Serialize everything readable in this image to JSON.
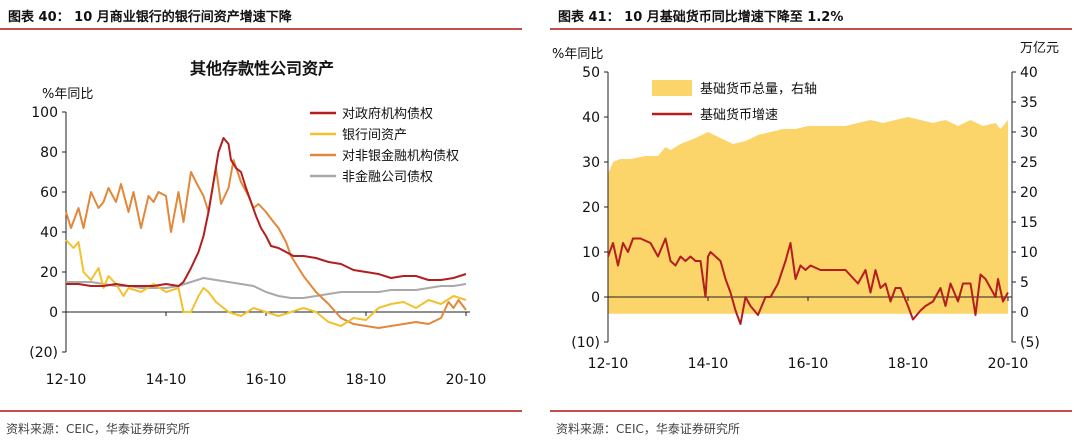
{
  "left": {
    "figure_title": "图表 40：   10 月商业银行的银行间资产增速下降",
    "source": "资料来源：CEIC，华泰证券研究所",
    "chart_data": {
      "type": "line",
      "title": "其他存款性公司资产",
      "ylabel": "%年同比",
      "ylim": [
        -20,
        100
      ],
      "yticks": [
        "(20)",
        "0",
        "20",
        "40",
        "60",
        "80",
        "100"
      ],
      "yticks_values": [
        -20,
        0,
        20,
        40,
        60,
        80,
        100
      ],
      "xlim": [
        2012.75,
        2020.83
      ],
      "xticks": [
        "12-10",
        "14-10",
        "16-10",
        "18-10",
        "20-10"
      ],
      "xticks_values": [
        2012.75,
        2014.75,
        2016.75,
        2018.75,
        2020.75
      ],
      "legend_position": "top-right",
      "series": [
        {
          "name": "对政府机构债权",
          "color": "#b41e1e",
          "x": [
            2012.75,
            2013.0,
            2013.25,
            2013.5,
            2013.75,
            2014.0,
            2014.25,
            2014.5,
            2014.75,
            2015.0,
            2015.1,
            2015.25,
            2015.4,
            2015.5,
            2015.6,
            2015.7,
            2015.8,
            2015.9,
            2016.0,
            2016.05,
            2016.15,
            2016.25,
            2016.35,
            2016.45,
            2016.55,
            2016.65,
            2016.75,
            2016.85,
            2017.0,
            2017.15,
            2017.3,
            2017.5,
            2017.75,
            2018.0,
            2018.25,
            2018.5,
            2018.75,
            2019.0,
            2019.25,
            2019.5,
            2019.75,
            2020.0,
            2020.25,
            2020.5,
            2020.75
          ],
          "y": [
            14,
            14,
            13,
            13,
            14,
            13,
            13,
            13,
            14,
            13,
            15,
            22,
            30,
            38,
            50,
            65,
            80,
            87,
            84,
            76,
            72,
            70,
            62,
            55,
            48,
            42,
            38,
            33,
            32,
            30,
            28,
            28,
            27,
            25,
            24,
            21,
            20,
            19,
            17,
            18,
            18,
            16,
            16,
            17,
            19
          ]
        },
        {
          "name": "银行间资产",
          "color": "#f2c12e",
          "x": [
            2012.75,
            2012.9,
            2013.0,
            2013.1,
            2013.25,
            2013.4,
            2013.5,
            2013.6,
            2013.75,
            2013.9,
            2014.0,
            2014.25,
            2014.5,
            2014.75,
            2015.0,
            2015.1,
            2015.25,
            2015.4,
            2015.5,
            2015.6,
            2015.75,
            2016.0,
            2016.25,
            2016.5,
            2016.75,
            2017.0,
            2017.25,
            2017.5,
            2017.75,
            2018.0,
            2018.25,
            2018.5,
            2018.75,
            2019.0,
            2019.25,
            2019.5,
            2019.75,
            2020.0,
            2020.25,
            2020.5,
            2020.75
          ],
          "y": [
            36,
            32,
            35,
            20,
            16,
            22,
            12,
            18,
            14,
            8,
            12,
            10,
            14,
            10,
            12,
            0,
            0,
            8,
            12,
            10,
            5,
            0,
            -2,
            2,
            0,
            -2,
            0,
            2,
            0,
            -5,
            -7,
            -3,
            -4,
            2,
            4,
            5,
            2,
            6,
            4,
            8,
            6
          ]
        },
        {
          "name": "对非银金融机构债权",
          "color": "#e2883a",
          "x": [
            2012.75,
            2012.85,
            2013.0,
            2013.1,
            2013.25,
            2013.4,
            2013.5,
            2013.6,
            2013.75,
            2013.85,
            2014.0,
            2014.1,
            2014.25,
            2014.4,
            2014.5,
            2014.6,
            2014.75,
            2014.85,
            2015.0,
            2015.1,
            2015.25,
            2015.35,
            2015.5,
            2015.6,
            2015.75,
            2015.85,
            2016.0,
            2016.1,
            2016.25,
            2016.4,
            2016.5,
            2016.6,
            2016.75,
            2016.9,
            2017.0,
            2017.15,
            2017.25,
            2017.4,
            2017.5,
            2017.75,
            2018.0,
            2018.25,
            2018.5,
            2018.75,
            2019.0,
            2019.25,
            2019.5,
            2019.75,
            2020.0,
            2020.25,
            2020.4,
            2020.5,
            2020.6,
            2020.75
          ],
          "y": [
            50,
            42,
            52,
            42,
            60,
            52,
            55,
            62,
            55,
            64,
            50,
            60,
            42,
            58,
            55,
            60,
            58,
            40,
            60,
            45,
            70,
            65,
            58,
            50,
            72,
            54,
            62,
            76,
            65,
            58,
            52,
            54,
            50,
            45,
            42,
            35,
            28,
            22,
            18,
            10,
            4,
            -3,
            -6,
            -7,
            -8,
            -7,
            -6,
            -5,
            -6,
            -3,
            5,
            2,
            6,
            1
          ]
        },
        {
          "name": "非金融公司债权",
          "color": "#a9a9a9",
          "x": [
            2012.75,
            2013.0,
            2013.25,
            2013.5,
            2013.75,
            2014.0,
            2014.25,
            2014.5,
            2014.75,
            2015.0,
            2015.25,
            2015.5,
            2015.75,
            2016.0,
            2016.25,
            2016.5,
            2016.75,
            2017.0,
            2017.25,
            2017.5,
            2017.75,
            2018.0,
            2018.25,
            2018.5,
            2018.75,
            2019.0,
            2019.25,
            2019.5,
            2019.75,
            2020.0,
            2020.25,
            2020.5,
            2020.75
          ],
          "y": [
            15,
            15,
            15,
            14,
            13,
            13,
            12,
            12,
            12,
            13,
            15,
            17,
            16,
            15,
            14,
            13,
            10,
            8,
            7,
            7,
            8,
            9,
            10,
            10,
            10,
            10,
            11,
            11,
            11,
            12,
            13,
            13,
            14
          ]
        }
      ]
    }
  },
  "right": {
    "figure_title": "图表 41：   10 月基础货币同比增速下降至 1.2%",
    "source": "资料来源：CEIC，华泰证券研究所",
    "chart_data": {
      "type": "area",
      "ylabel_left": "%年同比",
      "ylabel_right": "万亿元",
      "ylim_left": [
        -10,
        50
      ],
      "yticks_left": [
        "(10)",
        "0",
        "10",
        "20",
        "30",
        "40",
        "50"
      ],
      "yticks_left_values": [
        -10,
        0,
        10,
        20,
        30,
        40,
        50
      ],
      "ylim_right": [
        -5,
        40
      ],
      "yticks_right": [
        "(5)",
        "0",
        "5",
        "10",
        "15",
        "20",
        "25",
        "30",
        "35",
        "40"
      ],
      "yticks_right_values": [
        -5,
        0,
        5,
        10,
        15,
        20,
        25,
        30,
        35,
        40
      ],
      "xlim": [
        2012.75,
        2020.83
      ],
      "xticks": [
        "12-10",
        "14-10",
        "16-10",
        "18-10",
        "20-10"
      ],
      "xticks_values": [
        2012.75,
        2014.75,
        2016.75,
        2018.75,
        2020.75
      ],
      "legend_position": "top-left",
      "series": [
        {
          "name": "基础货币总量，右轴",
          "color": "#fbd46a",
          "axis": "right",
          "kind": "area",
          "x": [
            2012.75,
            2012.85,
            2013.0,
            2013.2,
            2013.5,
            2013.75,
            2013.9,
            2014.0,
            2014.2,
            2014.5,
            2014.75,
            2015.0,
            2015.25,
            2015.5,
            2015.75,
            2016.0,
            2016.25,
            2016.5,
            2016.75,
            2017.0,
            2017.25,
            2017.5,
            2017.75,
            2018.0,
            2018.25,
            2018.5,
            2018.75,
            2019.0,
            2019.25,
            2019.5,
            2019.75,
            2020.0,
            2020.25,
            2020.5,
            2020.6,
            2020.75
          ],
          "y": [
            23,
            25,
            25.5,
            25.5,
            26,
            26,
            27.5,
            27,
            28,
            29,
            30,
            29,
            28,
            28.5,
            29.5,
            30,
            30.5,
            30.5,
            31,
            31,
            31,
            31,
            31.5,
            32,
            31.5,
            32,
            32.5,
            32,
            31.5,
            32,
            31,
            32,
            31,
            31.5,
            30.5,
            32
          ]
        },
        {
          "name": "基础货币增速",
          "color": "#b41e1e",
          "axis": "left",
          "kind": "line",
          "x": [
            2012.75,
            2012.85,
            2012.95,
            2013.05,
            2013.15,
            2013.25,
            2013.4,
            2013.6,
            2013.75,
            2013.9,
            2014.0,
            2014.1,
            2014.2,
            2014.3,
            2014.4,
            2014.5,
            2014.6,
            2014.7,
            2014.75,
            2014.8,
            2015.0,
            2015.1,
            2015.2,
            2015.3,
            2015.4,
            2015.5,
            2015.6,
            2015.75,
            2015.9,
            2016.0,
            2016.15,
            2016.3,
            2016.4,
            2016.5,
            2016.6,
            2016.7,
            2016.8,
            2017.0,
            2017.25,
            2017.5,
            2017.75,
            2017.9,
            2018.0,
            2018.1,
            2018.2,
            2018.3,
            2018.4,
            2018.5,
            2018.6,
            2018.75,
            2018.85,
            2019.0,
            2019.1,
            2019.25,
            2019.4,
            2019.5,
            2019.6,
            2019.75,
            2019.85,
            2020.0,
            2020.1,
            2020.2,
            2020.3,
            2020.4,
            2020.5,
            2020.55,
            2020.65,
            2020.75
          ],
          "y": [
            9,
            12,
            7,
            12,
            10,
            13,
            13,
            12,
            9,
            13,
            8,
            7,
            9,
            8,
            9,
            8,
            8,
            0,
            9,
            10,
            8,
            4,
            1,
            -3,
            -6,
            0,
            -2,
            -4,
            0,
            0,
            3,
            8,
            12,
            4,
            7,
            6,
            7,
            6,
            6,
            6,
            3,
            6,
            1,
            6,
            2,
            3,
            -1,
            2,
            2,
            -2,
            -5,
            -3,
            -2,
            -1,
            2,
            -2,
            3,
            -1,
            3,
            3,
            -4,
            5,
            4,
            2,
            0,
            4,
            -1,
            1
          ]
        }
      ]
    }
  }
}
